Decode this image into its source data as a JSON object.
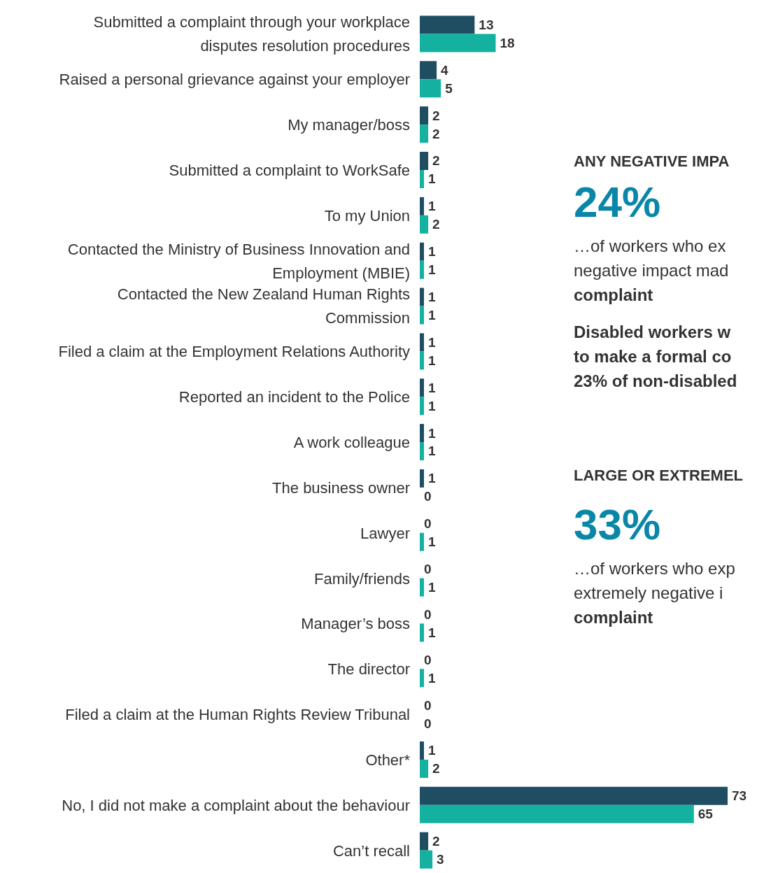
{
  "chart_data": [
    {
      "type": "bar",
      "orientation": "horizontal",
      "data_labels": true,
      "categories": [
        "Submitted a complaint through your workplace disputes resolution procedures",
        "Raised a personal grievance against your employer",
        "My manager/boss",
        "Submitted a complaint to WorkSafe",
        "To my Union",
        "Contacted the Ministry of Business Innovation and Employment (MBIE)",
        "Contacted the New Zealand Human Rights Commission",
        "Filed a claim at the Employment Relations Authority",
        "Reported an incident to the Police",
        "A work colleague",
        "The business owner",
        "Lawyer",
        "Family/friends",
        "Manager’s boss",
        "The director",
        "Filed a claim at the Human Rights Review Tribunal",
        "Other*",
        "No, I did not make a complaint about the behaviour",
        "Can’t recall"
      ],
      "series": [
        {
          "color": "#1f4e63",
          "values": [
            13,
            4,
            2,
            2,
            1,
            1,
            1,
            1,
            1,
            1,
            1,
            0,
            0,
            0,
            0,
            0,
            1,
            73,
            2
          ]
        },
        {
          "color": "#14b1a1",
          "values": [
            18,
            5,
            2,
            1,
            2,
            1,
            1,
            1,
            1,
            1,
            0,
            1,
            1,
            1,
            1,
            0,
            2,
            65,
            3
          ]
        }
      ]
    },
    {
      "type": "other",
      "annotations": [
        "ANY NEGATIVE IMPA",
        "24%",
        "…of workers who ex",
        "negative impact mad",
        "complaint",
        "Disabled workers w",
        "to make a formal co",
        "23% of non-disabled",
        "LARGE OR EXTREMEL",
        "33%",
        "…of workers who exp",
        "extremely negative i",
        "complaint"
      ]
    }
  ]
}
